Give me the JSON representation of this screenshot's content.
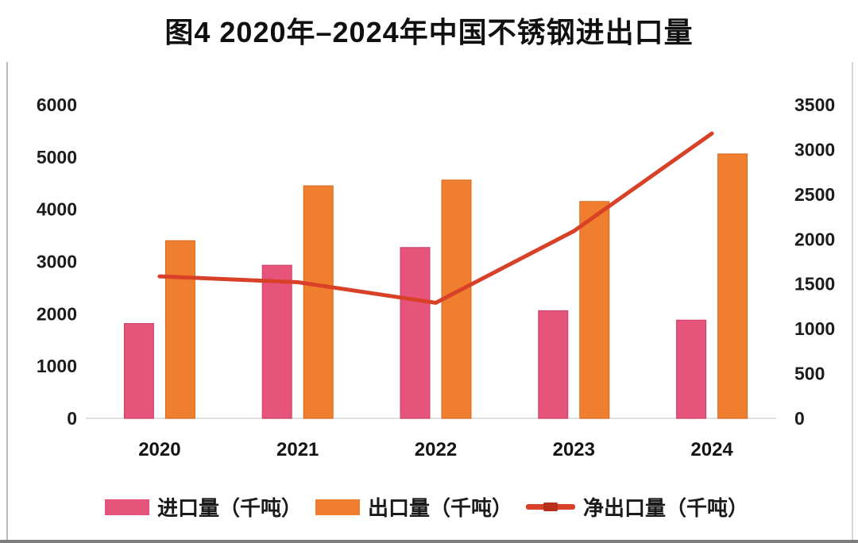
{
  "title": "图4 2020年–2024年中国不锈钢进出口量",
  "legend": {
    "items": [
      {
        "label": "进口量（千吨）",
        "type": "bar",
        "color": "#e6537b"
      },
      {
        "label": "出口量（千吨）",
        "type": "bar",
        "color": "#ef7e2e"
      },
      {
        "label": "净出口量（千吨）",
        "type": "line",
        "color": "#d84127"
      }
    ]
  },
  "colors": {
    "import_bar": "#e6537b",
    "import_bar_edge": "#c93f66",
    "export_bar": "#ef7e2e",
    "export_bar_edge": "#d4691c",
    "net_line": "#d84127",
    "net_line_dark": "#b8301a",
    "axis_text": "#1c1c1c",
    "baseline": "#e0e0e0"
  },
  "chart_data": {
    "type": "bar",
    "subtype": "grouped-bars-with-line",
    "title": "图4 2020年–2024年中国不锈钢进出口量",
    "categories": [
      "2020",
      "2021",
      "2022",
      "2023",
      "2024"
    ],
    "series": [
      {
        "name": "进口量（千吨）",
        "type": "bar",
        "axis": "left",
        "color": "#e6537b",
        "values": [
          1815,
          2930,
          3270,
          2060,
          1880
        ]
      },
      {
        "name": "出口量（千吨）",
        "type": "bar",
        "axis": "left",
        "color": "#ef7e2e",
        "values": [
          3400,
          4450,
          4560,
          4150,
          5060
        ]
      },
      {
        "name": "净出口量（千吨）",
        "type": "line",
        "axis": "right",
        "color": "#d84127",
        "values": [
          1585,
          1520,
          1290,
          2090,
          3180
        ]
      }
    ],
    "left_axis": {
      "min": 0,
      "max": 6000,
      "step": 1000,
      "ticks": [
        0,
        1000,
        2000,
        3000,
        4000,
        5000,
        6000
      ]
    },
    "right_axis": {
      "min": 0,
      "max": 3500,
      "step": 500,
      "ticks": [
        0,
        500,
        1000,
        1500,
        2000,
        2500,
        3000,
        3500
      ]
    },
    "xlabel": "",
    "ylabel_left": "",
    "ylabel_right": "",
    "grid": false,
    "legend_position": "bottom"
  }
}
